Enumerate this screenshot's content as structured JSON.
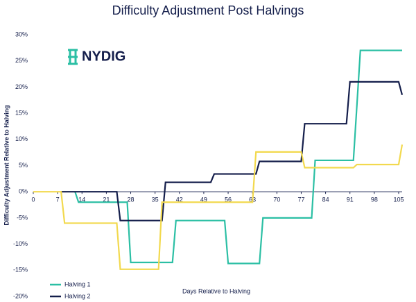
{
  "chart_data": {
    "type": "line",
    "title": "Difficulty Adjustment Post Halvings",
    "logo": "NYDIG",
    "x_label": "Days Relative to Halving",
    "y_label": "Difficulty Adjustment Relative to Halving",
    "xlim": [
      0,
      106
    ],
    "xticks": [
      0,
      7,
      14,
      21,
      28,
      35,
      42,
      49,
      56,
      63,
      70,
      77,
      84,
      91,
      98,
      105
    ],
    "ylim": [
      -20,
      30
    ],
    "yticks": [
      {
        "value": -20,
        "label": "-20%"
      },
      {
        "value": -15,
        "label": "-15%"
      },
      {
        "value": -10,
        "label": "-10%"
      },
      {
        "value": -5,
        "label": "-5%"
      },
      {
        "value": 0,
        "label": "0%"
      },
      {
        "value": 5,
        "label": "5%"
      },
      {
        "value": 10,
        "label": "10%"
      },
      {
        "value": 15,
        "label": "15%"
      },
      {
        "value": 20,
        "label": "20%"
      },
      {
        "value": 25,
        "label": "25%"
      },
      {
        "value": 30,
        "label": "30%"
      }
    ],
    "series": [
      {
        "name": "Halving 1",
        "color": "#2bbfa4",
        "x": [
          12,
          13,
          27,
          28,
          40,
          41,
          55,
          56,
          65,
          66,
          80,
          81,
          92,
          94,
          106
        ],
        "values": [
          0,
          -2,
          -2,
          -13.5,
          -13.5,
          -5.5,
          -5.5,
          -13.7,
          -13.7,
          -5,
          -5,
          6,
          6,
          27,
          27
        ]
      },
      {
        "name": "Halving 2",
        "color": "#141e4b",
        "x": [
          8,
          24,
          25,
          37,
          38,
          51,
          52,
          64,
          65,
          77,
          78,
          90,
          91,
          105,
          106
        ],
        "values": [
          0,
          0,
          -5.5,
          -5.5,
          1.8,
          1.8,
          3.4,
          3.4,
          5.8,
          5.8,
          13,
          13,
          21,
          21,
          18.5
        ]
      },
      {
        "color": "#f2d94e",
        "x": [
          0,
          8,
          9,
          24,
          25,
          36,
          37,
          63,
          64,
          77,
          78,
          92,
          93,
          105,
          106
        ],
        "values": [
          0,
          0,
          -6,
          -6,
          -14.8,
          -14.8,
          -2,
          -2,
          7.6,
          7.6,
          4.6,
          4.6,
          5.2,
          5.2,
          9
        ]
      }
    ]
  }
}
